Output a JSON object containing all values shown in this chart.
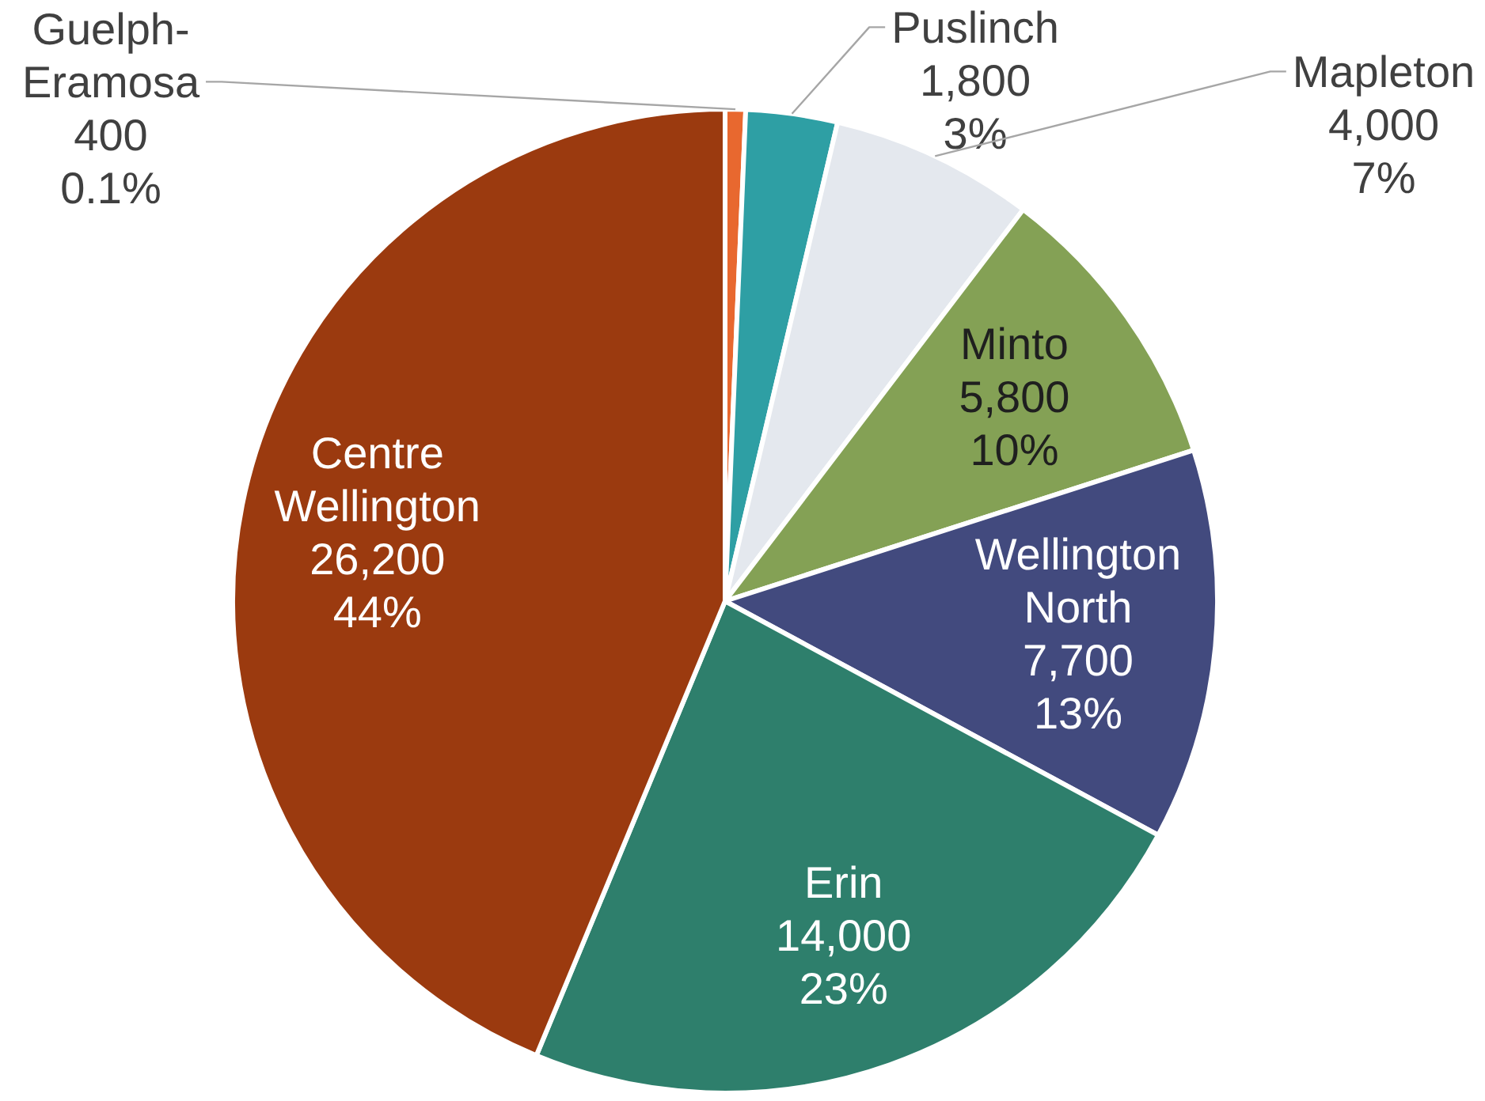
{
  "chart_data": {
    "type": "pie",
    "categories": [
      "Guelph-Eramosa",
      "Puslinch",
      "Mapleton",
      "Minto",
      "Wellington North",
      "Erin",
      "Centre Wellington"
    ],
    "values": [
      400,
      1800,
      4000,
      5800,
      7700,
      14000,
      26200
    ],
    "colors": [
      "#e8682f",
      "#2e9fa4",
      "#e4e8ee",
      "#84a155",
      "#424a7e",
      "#2e7f6c",
      "#9b3a0f"
    ],
    "value_labels": [
      "400\n0.1%",
      "1,800\n3%",
      "4,000\n7%",
      "5,800\n10%",
      "7,700\n13%",
      "14,000\n23%",
      "26,200\n44%"
    ]
  }
}
